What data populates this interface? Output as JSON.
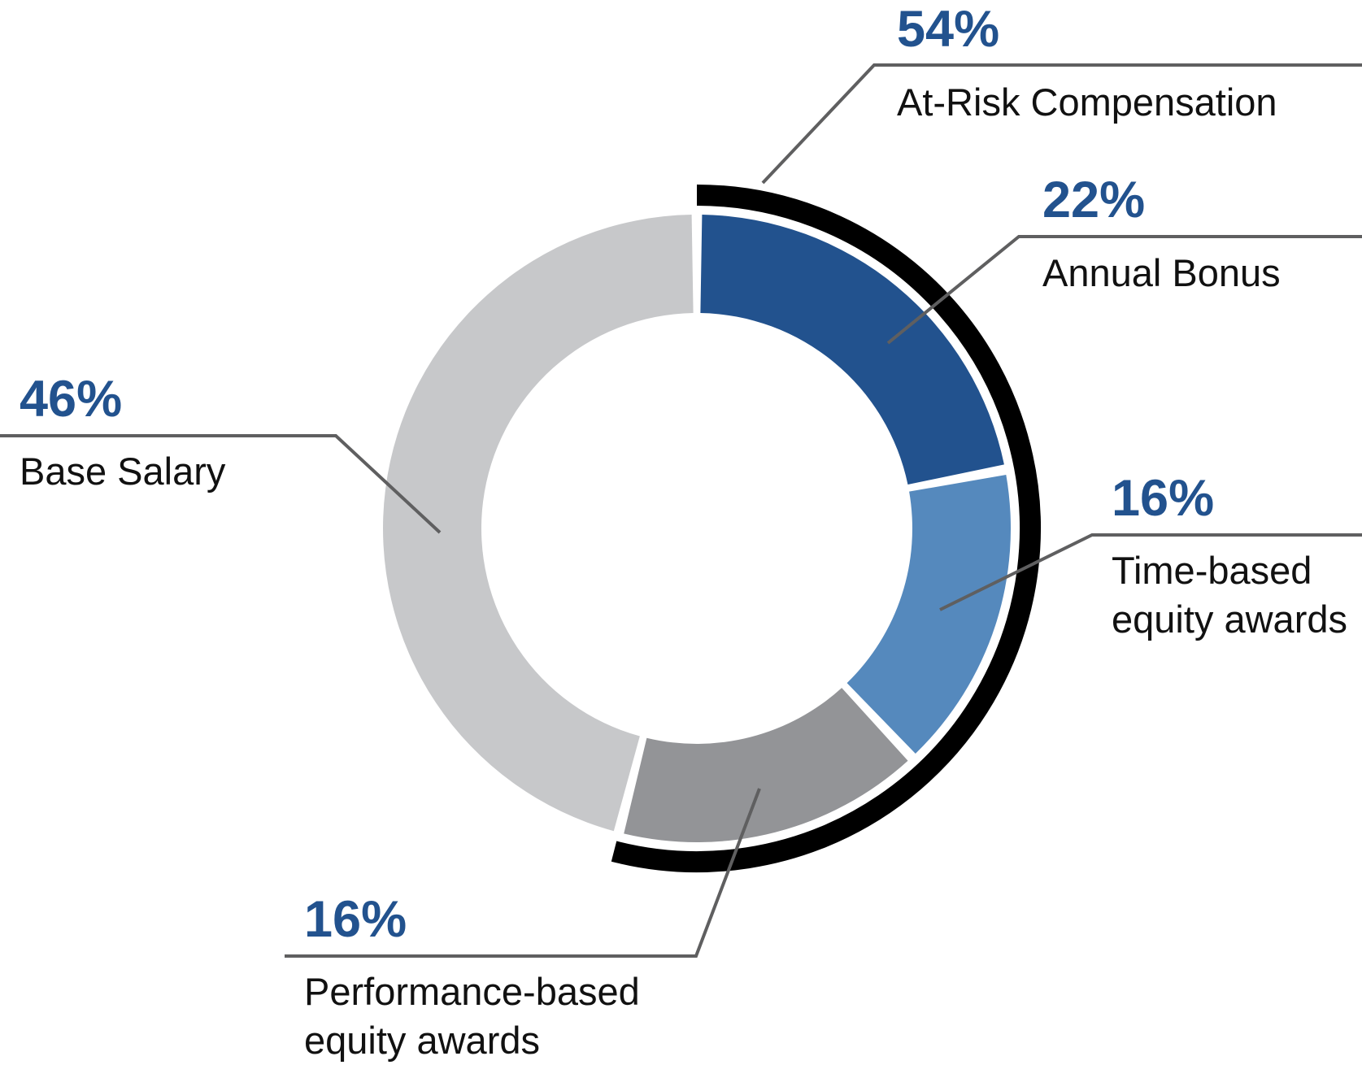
{
  "chart_data": {
    "type": "pie",
    "variant": "donut",
    "title": "",
    "slices": [
      {
        "label": "Annual Bonus",
        "value": 22,
        "display": "22%",
        "color": "#22528e"
      },
      {
        "label_lines": [
          "Time-based",
          "equity awards"
        ],
        "value": 16,
        "display": "16%",
        "color": "#5589bd"
      },
      {
        "label_lines": [
          "Performance-based",
          "equity awards"
        ],
        "value": 16,
        "display": "16%",
        "color": "#939497"
      },
      {
        "label": "Base Salary",
        "value": 46,
        "display": "46%",
        "color": "#c7c8ca"
      }
    ],
    "group_bracket": {
      "label": "At-Risk Compensation",
      "value": 54,
      "display": "54%",
      "includes": [
        "Annual Bonus",
        "Time-based equity awards",
        "Performance-based equity awards"
      ]
    },
    "colors": {
      "percent_text": "#22528e",
      "leader_line": "#5f5f60",
      "bracket": "#000000"
    }
  }
}
